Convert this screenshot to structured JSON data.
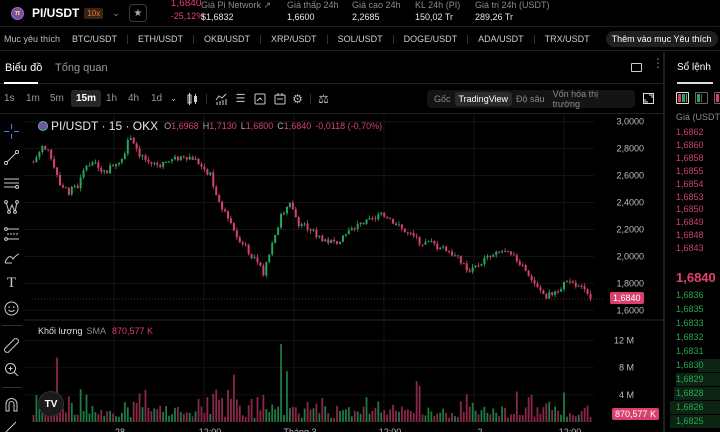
{
  "header": {
    "pair": "PI/USDT",
    "leverage": "10x",
    "last_price": "1,6840",
    "change_pct": "-25,12%",
    "stats": [
      {
        "label": "Giá Pi Network ↗",
        "value": "$1,6832",
        "x": 201
      },
      {
        "label": "Giá thấp 24h",
        "value": "1,6600",
        "x": 287
      },
      {
        "label": "Giá cao 24h",
        "value": "2,2685",
        "x": 352
      },
      {
        "label": "KL 24h (PI)",
        "value": "150,02 Tr",
        "x": 415
      },
      {
        "label": "Giá trị 24h (USDT)",
        "value": "289,26 Tr",
        "x": 475
      }
    ]
  },
  "favorites": {
    "title": "Mục yêu thích",
    "items": [
      "BTC/USDT",
      "ETH/USDT",
      "OKB/USDT",
      "XRP/USDT",
      "SOL/USDT",
      "DOGE/USDT",
      "ADA/USDT",
      "TRX/USDT"
    ],
    "add_label": "Thêm vào mục Yêu thích"
  },
  "chart_tabs": {
    "chart": "Biểu đồ",
    "overview": "Tổng quan"
  },
  "toolbar": {
    "timeframes": [
      "1s",
      "1m",
      "5m",
      "15m",
      "1h",
      "4h",
      "1d"
    ],
    "selected_timeframe": "15m",
    "views": [
      "Gốc",
      "TradingView",
      "Độ sâu",
      "Vốn hóa thị trường"
    ],
    "selected_view": "TradingView"
  },
  "chart_legend": {
    "symbol": "PI/USDT · 15 · OKX",
    "o_label": "O",
    "o": "1,6968",
    "h_label": "H",
    "h": "1,7130",
    "l_label": "L",
    "l": "1,6800",
    "c_label": "C",
    "c": "1,6840",
    "change": "-0,0118 (-0,70%)"
  },
  "volume_legend": {
    "label": "Khối lượng",
    "sma": "SMA",
    "value": "870,577 K"
  },
  "colors": {
    "up": "#26a65b",
    "down": "#d9406e",
    "badge": "#d9406e"
  },
  "chart_data": {
    "type": "candlestick",
    "title": "PI/USDT · 15 · OKX",
    "price_axis": {
      "ticks": [
        "3,0000",
        "2,8000",
        "2,6000",
        "2,4000",
        "2,2000",
        "2,0000",
        "1,8000",
        "1,6000"
      ],
      "range": [
        1.55,
        3.05
      ]
    },
    "current_price_label": "1,6840",
    "volume_axis": {
      "ticks": [
        "12 M",
        "8 M",
        "4 M"
      ]
    },
    "current_volume_label": "870,577 K",
    "x_ticks": [
      "28",
      "12:00",
      "Tháng 3",
      "12:00",
      "2",
      "12:00"
    ],
    "close_path": [
      2.7,
      2.82,
      2.74,
      2.55,
      2.48,
      2.52,
      2.68,
      2.7,
      2.62,
      2.68,
      2.73,
      2.9,
      2.76,
      2.7,
      2.68,
      2.7,
      2.72,
      2.75,
      2.73,
      2.68,
      2.6,
      2.4,
      2.3,
      2.15,
      2.08,
      1.97,
      1.88,
      2.1,
      2.3,
      2.38,
      2.25,
      2.22,
      2.16,
      2.12,
      2.1,
      2.15,
      2.2,
      2.24,
      2.26,
      2.3,
      2.3,
      2.24,
      2.18,
      2.14,
      2.1,
      2.1,
      2.06,
      2.04,
      1.98,
      1.9,
      1.92,
      1.98,
      2.0,
      2.04,
      2.0,
      1.96,
      1.88,
      1.76,
      1.7,
      1.74,
      1.8,
      1.79,
      1.76,
      1.684
    ]
  },
  "order_book": {
    "title": "Sổ lệnh",
    "column": "Giá (USDT)",
    "asks": [
      "1,6862",
      "1,6860",
      "1,6858",
      "1,6855",
      "1,6854",
      "1,6853",
      "1,6850",
      "1,6849",
      "1,6848",
      "1,6843"
    ],
    "mid": "1,6840",
    "bids": [
      {
        "price": "1,6836",
        "depth": 0
      },
      {
        "price": "1,6835",
        "depth": 0
      },
      {
        "price": "1,6833",
        "depth": 0
      },
      {
        "price": "1,6832",
        "depth": 0
      },
      {
        "price": "1,6831",
        "depth": 0
      },
      {
        "price": "1,6830",
        "depth": 22
      },
      {
        "price": "1,6829",
        "depth": 44
      },
      {
        "price": "1,6828",
        "depth": 46
      },
      {
        "price": "1,6826",
        "depth": 50
      },
      {
        "price": "1,6825",
        "depth": 50
      }
    ]
  }
}
